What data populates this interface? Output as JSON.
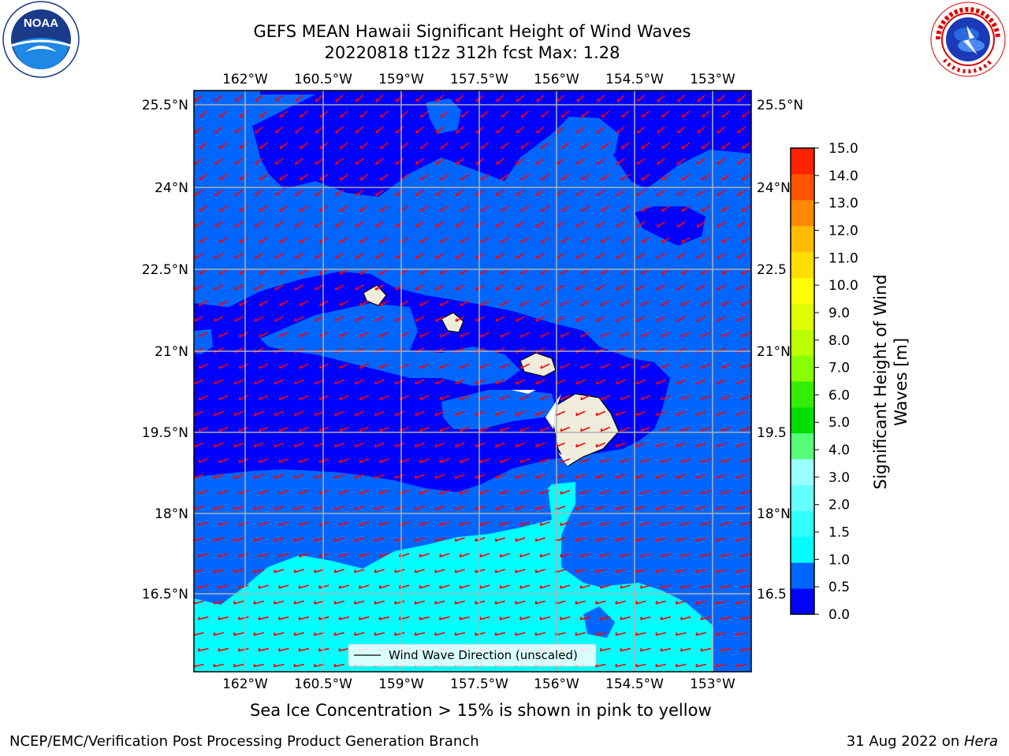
{
  "title_line1": "GEFS MEAN Hawaii Significant Height of Wind Waves",
  "title_line2": "20220818 t12z 312h fcst   Max: 1.28",
  "lon_ticks": [
    "162°W",
    "160.5°W",
    "159°W",
    "157.5°W",
    "156°W",
    "154.5°W",
    "153°W"
  ],
  "lat_ticks_left": [
    "25.5°N",
    "24°N",
    "22.5°N",
    "21°N",
    "19.5°N",
    "18°N",
    "16.5°N"
  ],
  "lat_ticks_right": [
    "25.5°N",
    "24°N",
    "22.5",
    "21°N",
    "19.5",
    "18°N",
    "16.5"
  ],
  "legend_label": "Wind Wave Direction (unscaled)",
  "colorbar": {
    "label_line1": "Significant Height of Wind",
    "label_line2": "Waves [m]",
    "ticks": [
      "0.0",
      "0.5",
      "1.0",
      "1.5",
      "2.0",
      "3.0",
      "4.0",
      "5.0",
      "6.0",
      "7.0",
      "8.0",
      "9.0",
      "10.0",
      "11.0",
      "12.0",
      "13.0",
      "14.0",
      "15.0"
    ],
    "colors": [
      "#0000ff",
      "#0066ff",
      "#00ffff",
      "#33ffff",
      "#66ffff",
      "#99ffff",
      "#55ff77",
      "#00dd00",
      "#33ee00",
      "#88ff00",
      "#bbff00",
      "#ddff00",
      "#ffff00",
      "#ffdd00",
      "#ffbb00",
      "#ff8800",
      "#ff5500",
      "#ff2200"
    ]
  },
  "caption": "Sea Ice Concentration > 15% is shown in pink to yellow",
  "footer_left": "NCEP/EMC/Verification Post Processing Product Generation Branch",
  "footer_date": "31 Aug 2022 on ",
  "footer_machine": "Hera",
  "map_colors": {
    "dark_blue": "#0000ff",
    "mid_blue": "#0066ff",
    "cyan": "#00ffff",
    "land": "#f0ecdc",
    "arrow": "#ff0000"
  }
}
